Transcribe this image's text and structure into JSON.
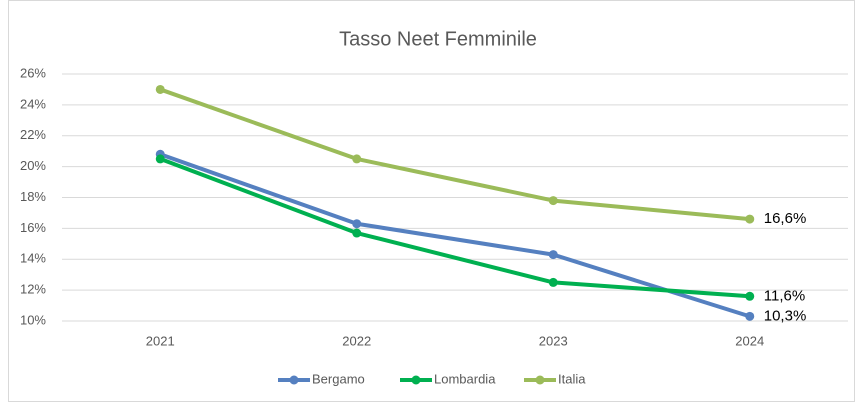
{
  "chart_data": {
    "type": "line",
    "title": "Tasso Neet Femminile",
    "categories": [
      "2021",
      "2022",
      "2023",
      "2024"
    ],
    "series": [
      {
        "name": "Bergamo",
        "color": "#5580c0",
        "values": [
          20.8,
          16.3,
          14.3,
          10.3
        ],
        "value_labels": [
          null,
          null,
          null,
          "10,3%"
        ]
      },
      {
        "name": "Lombardia",
        "color": "#00b050",
        "values": [
          20.5,
          15.7,
          12.5,
          11.6
        ],
        "value_labels": [
          null,
          null,
          null,
          "11,6%"
        ]
      },
      {
        "name": "Italia",
        "color": "#9bbb59",
        "values": [
          25.0,
          20.5,
          17.8,
          16.6
        ],
        "value_labels": [
          null,
          null,
          null,
          "16,6%"
        ]
      }
    ],
    "ylim": [
      10,
      26
    ],
    "yticks": [
      {
        "value": 10,
        "label": "10%"
      },
      {
        "value": 12,
        "label": "12%"
      },
      {
        "value": 14,
        "label": "14%"
      },
      {
        "value": 16,
        "label": "16%"
      },
      {
        "value": 18,
        "label": "18%"
      },
      {
        "value": 20,
        "label": "20%"
      },
      {
        "value": 22,
        "label": "22%"
      },
      {
        "value": 24,
        "label": "24%"
      },
      {
        "value": 26,
        "label": "26%"
      }
    ],
    "grid": true,
    "legend": "bottom"
  }
}
